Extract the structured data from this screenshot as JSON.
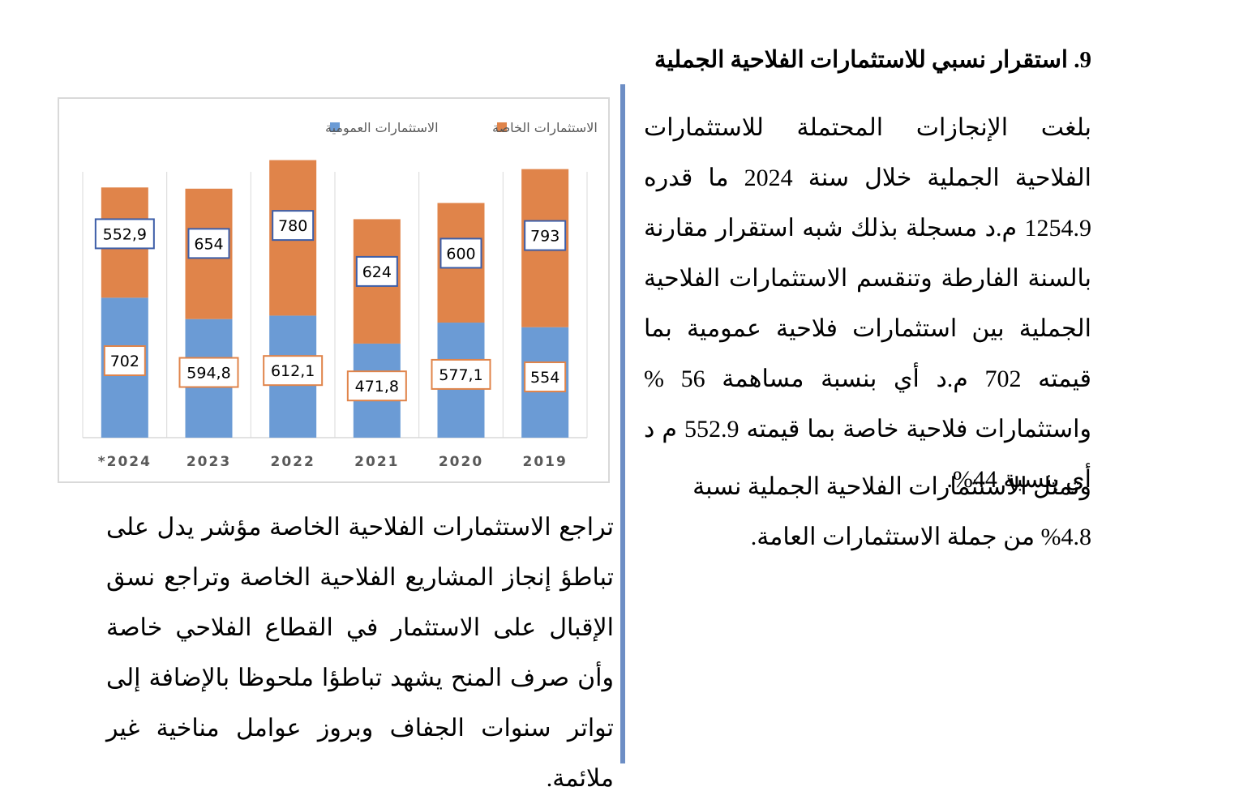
{
  "heading": "9. استقرار نسبي للاستثمارات الفلاحية الجملية",
  "paragraphs": {
    "main": "بلغت الإنجازات المحتملة للاستثمارات الفلاحية الجملية خلال سنة 2024 ما قدره 1254.9 م.د مسجلة بذلك شبه استقرار مقارنة بالسنة الفارطة وتنقسم الاستثمارات الفلاحية الجملية بين استثمارات فلاحية عمومية بما قيمته 702 م.د أي بنسبة مساهمة 56 % واستثمارات فلاحية خاصة بما قيمته 552.9 م د أي بنسبة 44%.",
    "share": "وتمثل الاستثمارات الفلاحية الجملية نسبة 4.8% من جملة الاستثمارات العامة.",
    "decline": "تراجع الاستثمارات الفلاحية الخاصة مؤشر يدل على تباطؤ إنجاز المشاريع الفلاحية الخاصة وتراجع نسق الإقبال على الاستثمار في القطاع الفلاحي خاصة وأن صرف المنح يشهد تباطؤا ملحوظا بالإضافة إلى تواتر سنوات الجفاف وبروز عوامل مناخية غير ملائمة."
  },
  "chart_data": {
    "type": "bar",
    "stacked": true,
    "categories": [
      "2019",
      "2020",
      "2021",
      "2022",
      "2023",
      "*2024"
    ],
    "series": [
      {
        "name": "الاستثمارات العمومية",
        "values": [
          554,
          577.1,
          471.8,
          612.1,
          594.8,
          702
        ],
        "labels": [
          "554",
          "577,1",
          "471,8",
          "612,1",
          "594,8",
          "702"
        ],
        "color": "#6b9bd5"
      },
      {
        "name": "الاستثمارات الخاصة",
        "values": [
          793,
          600,
          624,
          780,
          654,
          552.9
        ],
        "labels": [
          "793",
          "600",
          "624",
          "780",
          "654",
          "552,9"
        ],
        "color": "#e0844a"
      }
    ],
    "ylim": [
      0,
      1600
    ],
    "grid": "vertical",
    "legend": "top",
    "category_order": "right-to-left",
    "label_border_colors": {
      "public": "#e0844a",
      "private": "#3d5ea8"
    }
  }
}
